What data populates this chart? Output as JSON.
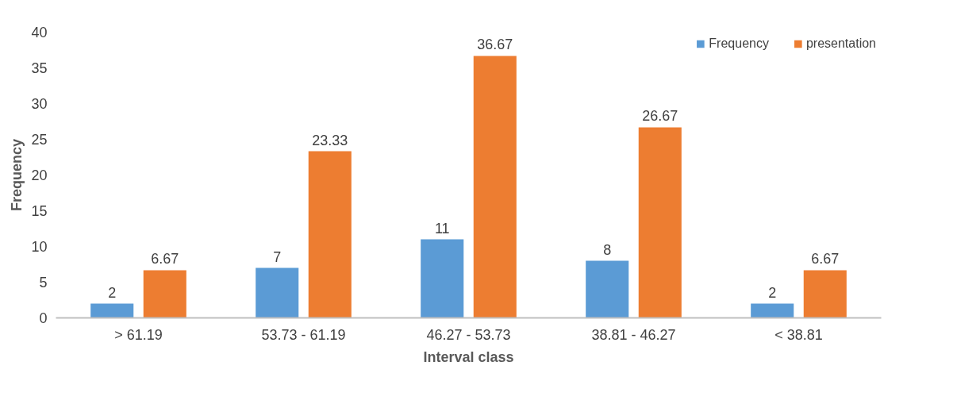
{
  "chart_data": {
    "type": "bar",
    "xlabel": "Interval class",
    "ylabel": "Frequency",
    "categories": [
      "> 61.19",
      "53.73 - 61.19",
      "46.27 - 53.73",
      "38.81 - 46.27",
      "< 38.81"
    ],
    "series": [
      {
        "name": "Frequency",
        "color": "#5b9bd5",
        "values": [
          2,
          7,
          11,
          8,
          2
        ]
      },
      {
        "name": "presentation",
        "color": "#ed7d31",
        "values": [
          6.67,
          23.33,
          36.67,
          26.67,
          6.67
        ]
      }
    ],
    "ylim": [
      0,
      40
    ],
    "yticks": [
      0,
      5,
      10,
      15,
      20,
      25,
      30,
      35,
      40
    ],
    "grid": false,
    "legend": "top right",
    "data_labels": true
  }
}
